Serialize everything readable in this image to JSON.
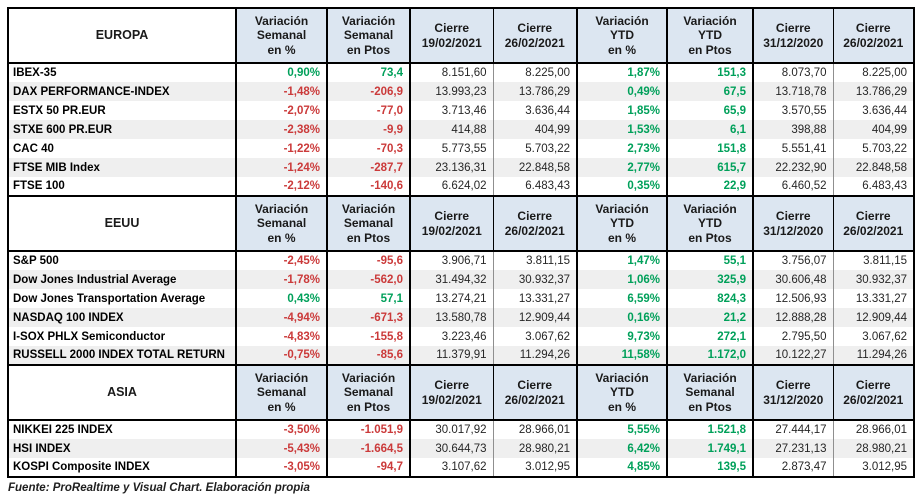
{
  "page": {
    "footer": "Fuente: ProRealtime y Visual Chart. Elaboración propia"
  },
  "chart_data": {
    "type": "table",
    "colors": {
      "positive": "#00A05A",
      "negative": "#CB3A3A",
      "header_background": "#DCE6F1",
      "row_stripe": "#EFEFEF"
    },
    "sections": [
      {
        "region": "EUROPA",
        "headers": [
          "Variación\nSemanal\nen %",
          "Variación\nSemanal\nen Ptos",
          "Cierre\n19/02/2021",
          "Cierre\n26/02/2021",
          "Variación\nYTD\nen %",
          "Variación\nYTD\nen Ptos",
          "Cierre\n31/12/2020",
          "Cierre\n26/02/2021"
        ],
        "rows": [
          {
            "name": "IBEX-35",
            "values": [
              "0,90%",
              "73,4",
              "8.151,60",
              "8.225,00",
              "1,87%",
              "151,3",
              "8.073,70",
              "8.225,00"
            ]
          },
          {
            "name": "DAX PERFORMANCE-INDEX",
            "values": [
              "-1,48%",
              "-206,9",
              "13.993,23",
              "13.786,29",
              "0,49%",
              "67,5",
              "13.718,78",
              "13.786,29"
            ]
          },
          {
            "name": "ESTX 50 PR.EUR",
            "values": [
              "-2,07%",
              "-77,0",
              "3.713,46",
              "3.636,44",
              "1,85%",
              "65,9",
              "3.570,55",
              "3.636,44"
            ]
          },
          {
            "name": "STXE 600 PR.EUR",
            "values": [
              "-2,38%",
              "-9,9",
              "414,88",
              "404,99",
              "1,53%",
              "6,1",
              "398,88",
              "404,99"
            ]
          },
          {
            "name": "CAC 40",
            "values": [
              "-1,22%",
              "-70,3",
              "5.773,55",
              "5.703,22",
              "2,73%",
              "151,8",
              "5.551,41",
              "5.703,22"
            ]
          },
          {
            "name": "FTSE MIB Index",
            "values": [
              "-1,24%",
              "-287,7",
              "23.136,31",
              "22.848,58",
              "2,77%",
              "615,7",
              "22.232,90",
              "22.848,58"
            ]
          },
          {
            "name": "FTSE 100",
            "values": [
              "-2,12%",
              "-140,6",
              "6.624,02",
              "6.483,43",
              "0,35%",
              "22,9",
              "6.460,52",
              "6.483,43"
            ]
          }
        ]
      },
      {
        "region": "EEUU",
        "headers": [
          "Variación\nSemanal\nen %",
          "Variación\nSemanal\nen Ptos",
          "Cierre\n19/02/2021",
          "Cierre\n26/02/2021",
          "Variación\nYTD\nen %",
          "Variación\nYTD\nen Ptos",
          "Cierre\n31/12/2020",
          "Cierre\n26/02/2021"
        ],
        "rows": [
          {
            "name": "S&P 500",
            "values": [
              "-2,45%",
              "-95,6",
              "3.906,71",
              "3.811,15",
              "1,47%",
              "55,1",
              "3.756,07",
              "3.811,15"
            ]
          },
          {
            "name": "Dow Jones Industrial Average",
            "values": [
              "-1,78%",
              "-562,0",
              "31.494,32",
              "30.932,37",
              "1,06%",
              "325,9",
              "30.606,48",
              "30.932,37"
            ]
          },
          {
            "name": "Dow Jones Transportation Average",
            "values": [
              "0,43%",
              "57,1",
              "13.274,21",
              "13.331,27",
              "6,59%",
              "824,3",
              "12.506,93",
              "13.331,27"
            ]
          },
          {
            "name": "NASDAQ 100 INDEX",
            "values": [
              "-4,94%",
              "-671,3",
              "13.580,78",
              "12.909,44",
              "0,16%",
              "21,2",
              "12.888,28",
              "12.909,44"
            ]
          },
          {
            "name": "I-SOX  PHLX Semiconductor",
            "values": [
              "-4,83%",
              "-155,8",
              "3.223,46",
              "3.067,62",
              "9,73%",
              "272,1",
              "2.795,50",
              "3.067,62"
            ]
          },
          {
            "name": "RUSSELL 2000 INDEX TOTAL RETURN",
            "values": [
              "-0,75%",
              "-85,6",
              "11.379,91",
              "11.294,26",
              "11,58%",
              "1.172,0",
              "10.122,27",
              "11.294,26"
            ]
          }
        ]
      },
      {
        "region": "ASIA",
        "headers": [
          "Variación\nSemanal\nen %",
          "Variación\nSemanal\nen Ptos",
          "Cierre\n19/02/2021",
          "Cierre\n26/02/2021",
          "Variación\nYTD\nen %",
          "Variación\nSemanal\nen Ptos",
          "Cierre\n31/12/2020",
          "Cierre\n26/02/2021"
        ],
        "rows": [
          {
            "name": "NIKKEI 225 INDEX",
            "values": [
              "-3,50%",
              "-1.051,9",
              "30.017,92",
              "28.966,01",
              "5,55%",
              "1.521,8",
              "27.444,17",
              "28.966,01"
            ]
          },
          {
            "name": "HSI INDEX",
            "values": [
              "-5,43%",
              "-1.664,5",
              "30.644,73",
              "28.980,21",
              "6,42%",
              "1.749,1",
              "27.231,13",
              "28.980,21"
            ]
          },
          {
            "name": "KOSPI Composite INDEX",
            "values": [
              "-3,05%",
              "-94,7",
              "3.107,62",
              "3.012,95",
              "4,85%",
              "139,5",
              "2.873,47",
              "3.012,95"
            ]
          }
        ]
      }
    ]
  }
}
